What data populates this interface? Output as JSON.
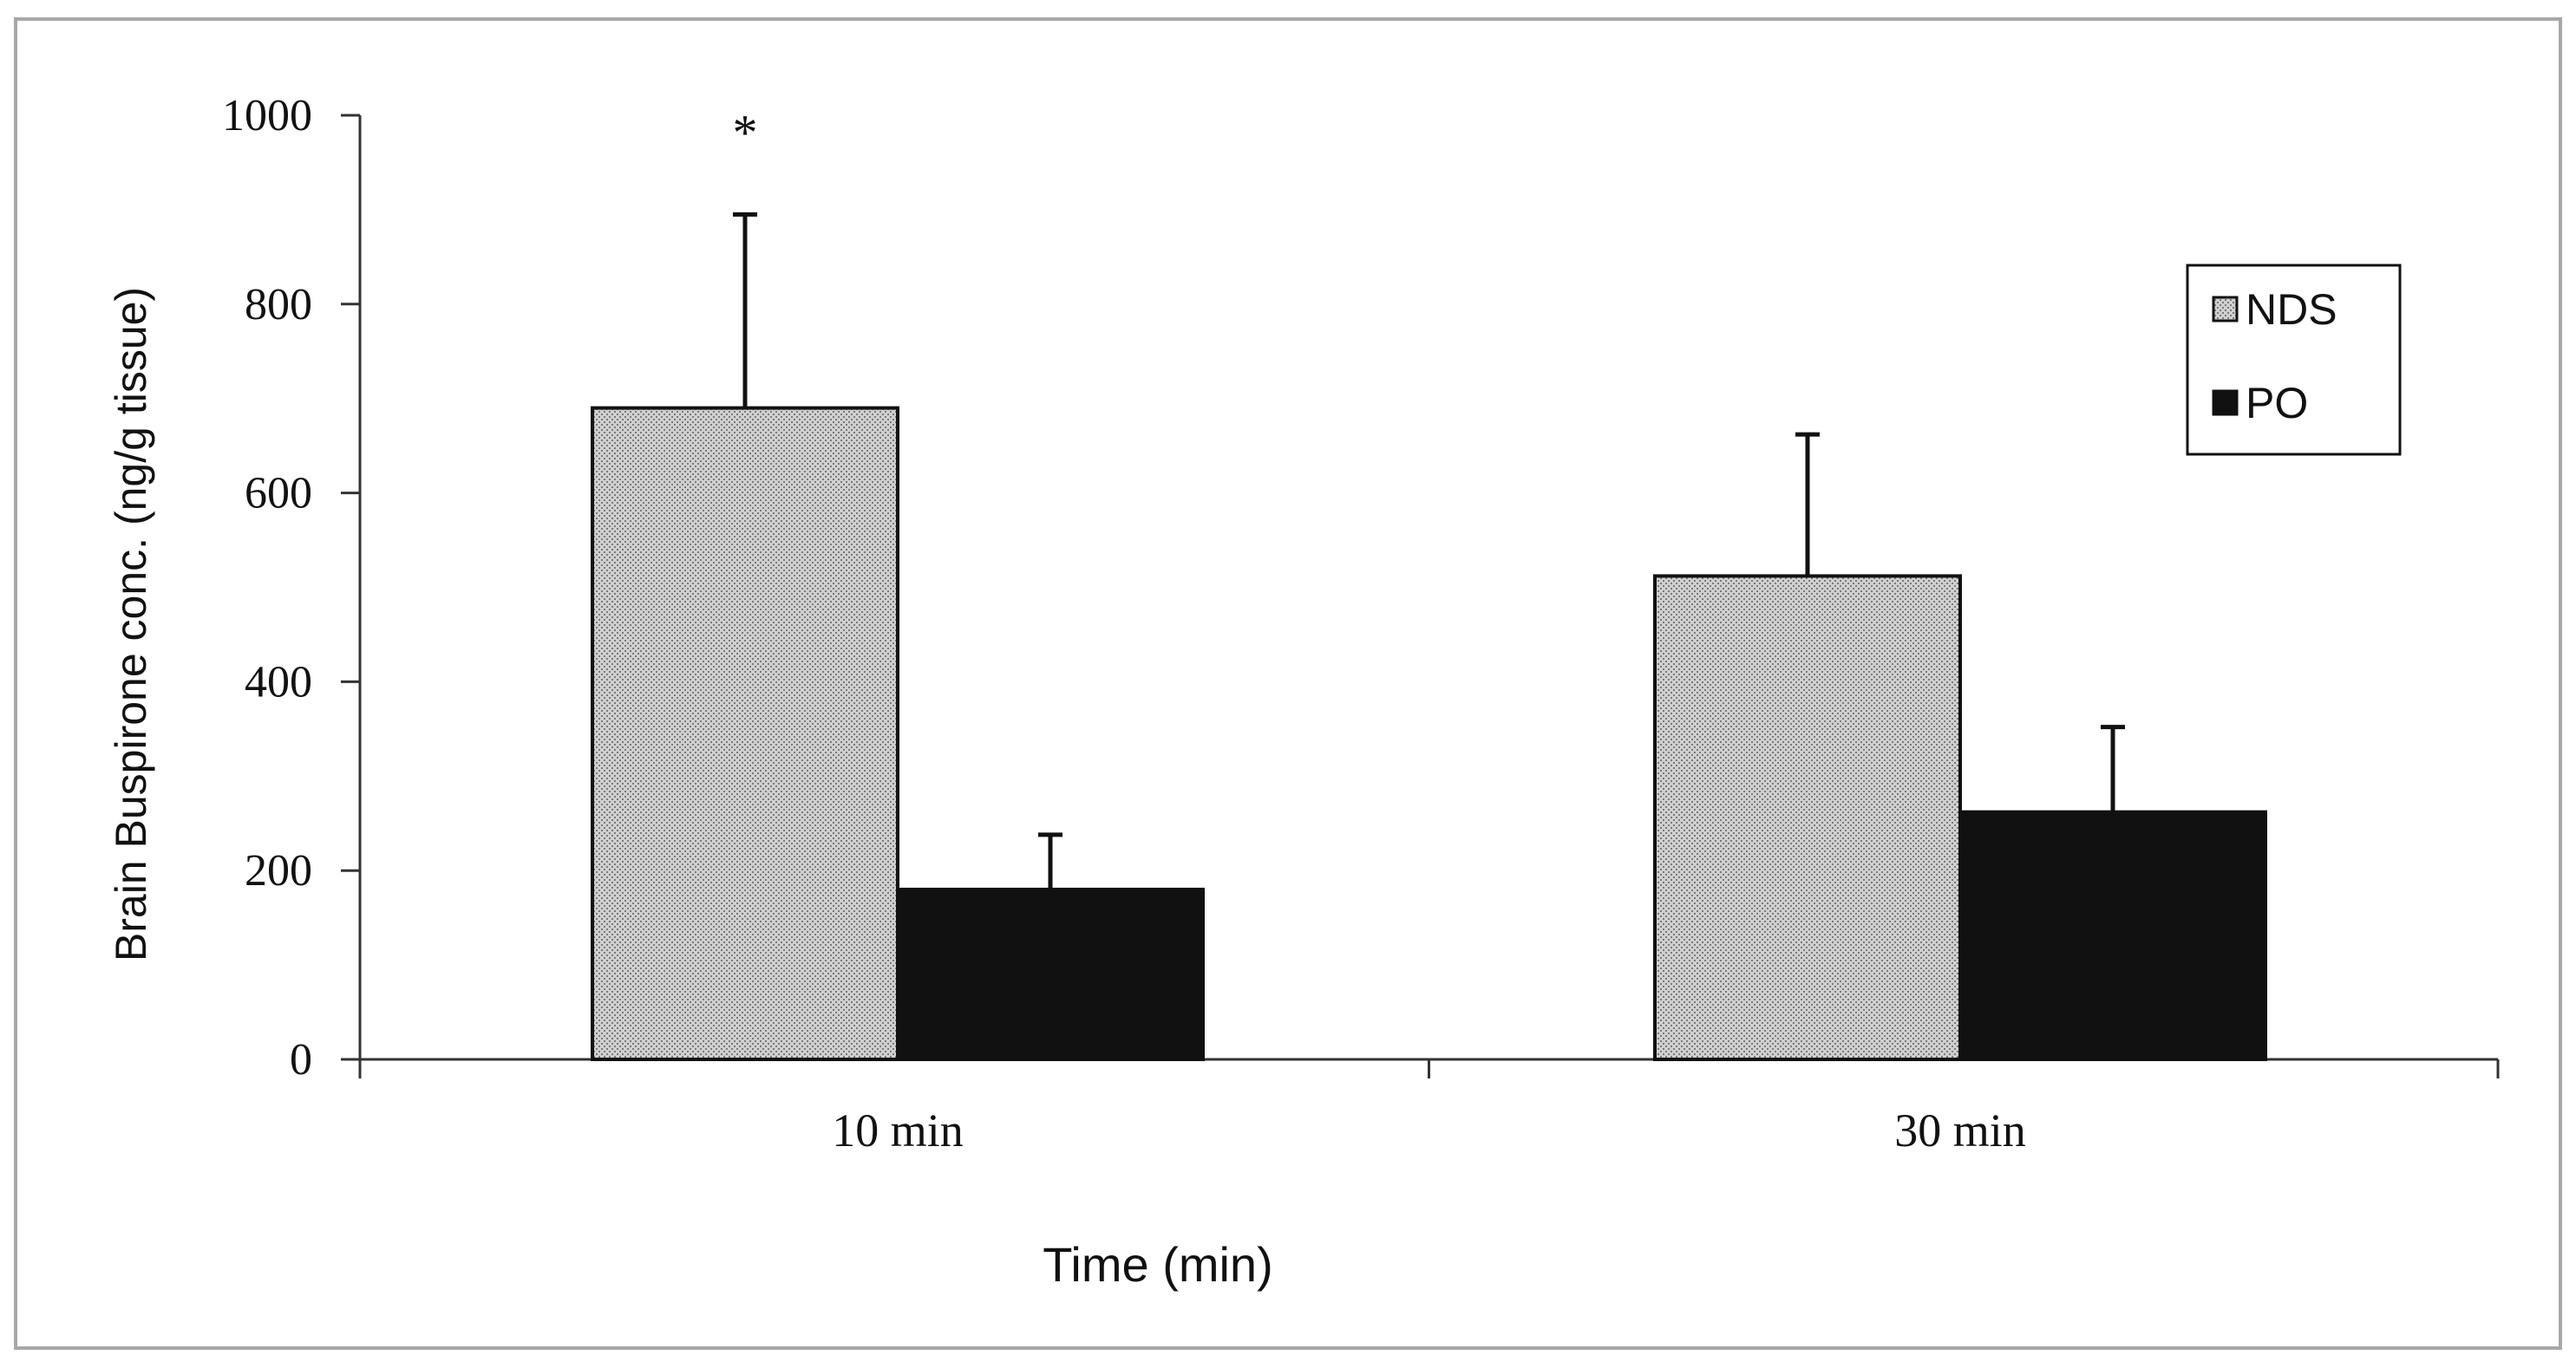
{
  "chart_data": {
    "type": "bar",
    "title": "",
    "xlabel": "Time (min)",
    "ylabel": "Brain Buspirone conc. (ng/g tissue)",
    "categories": [
      "10  min",
      "30 min"
    ],
    "ylim": [
      0,
      1000
    ],
    "yticks": [
      0,
      200,
      400,
      600,
      800,
      1000
    ],
    "grid": false,
    "legend_position": "right",
    "series": [
      {
        "name": "NDS",
        "values": [
          690,
          512
        ],
        "errors": [
          205,
          150
        ],
        "color": "#bcbcbc",
        "pattern": "dense-dotted"
      },
      {
        "name": "PO",
        "values": [
          180,
          262
        ],
        "errors": [
          58,
          90
        ],
        "color": "#111111",
        "pattern": "solid"
      }
    ],
    "annotations": [
      {
        "text": "*",
        "series": "NDS",
        "category": "10  min"
      }
    ]
  }
}
